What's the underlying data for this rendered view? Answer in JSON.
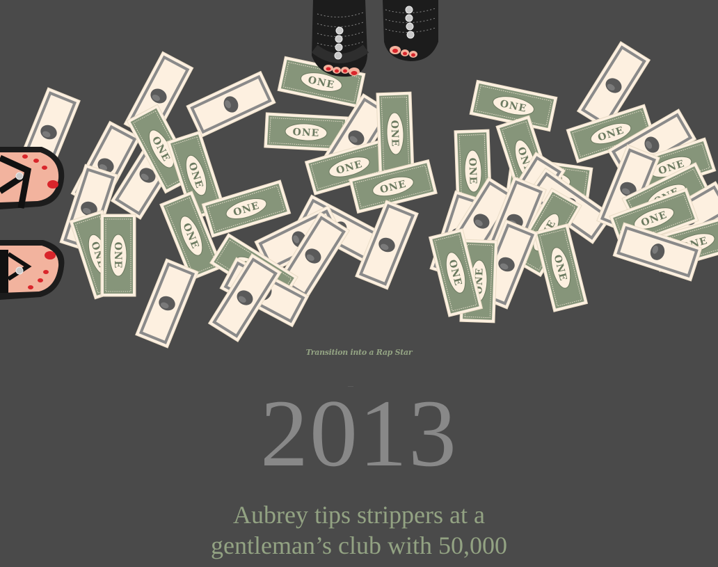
{
  "colors": {
    "background": "#4a4a4a",
    "bill_green": "#86957a",
    "bill_cream": "#fdf0e0",
    "bill_dark": "#5a5a5a",
    "heading_gray": "#888888",
    "text_green": "#93a383",
    "skin": "#f2b39e",
    "nail_red": "#d9252b",
    "shoe_black": "#1c1c1c",
    "rhinestone": "#c9c9c9"
  },
  "illustration": {
    "bill_label": "ONE",
    "icons": [
      "dollar-bill-icon",
      "feet-with-sandals-icon",
      "strappy-sandal-icon"
    ]
  },
  "kicker": "Transition into a Rap Star",
  "year": "2013",
  "body": "Aubrey tips strippers at a gentleman’s club with 50,000"
}
